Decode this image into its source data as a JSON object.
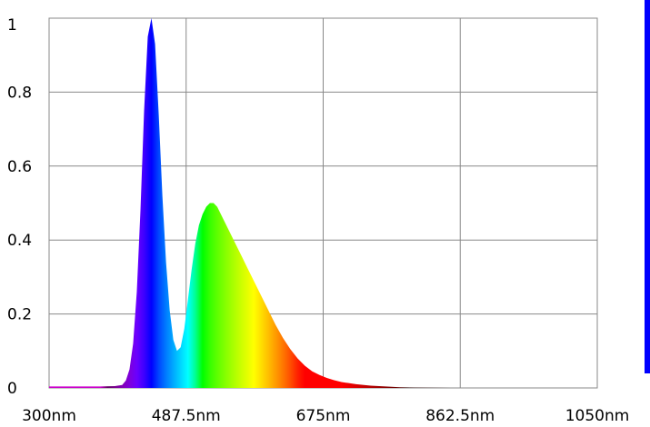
{
  "chart_data": {
    "type": "area",
    "title": "",
    "xlabel": "",
    "ylabel": "",
    "x_unit_suffix": "nm",
    "xlim": [
      300,
      1050
    ],
    "ylim": [
      0,
      1
    ],
    "x_ticks": [
      "300nm",
      "487.5nm",
      "675nm",
      "862.5nm",
      "1050nm"
    ],
    "y_ticks": [
      "0",
      "0.2",
      "0.4",
      "0.6",
      "0.8",
      "1"
    ],
    "grid": true,
    "legend": "none",
    "fill": "wavelength-color spectrum gradient",
    "series": [
      {
        "x": [
          300,
          370,
          390,
          400,
          405,
          410,
          415,
          420,
          425,
          430,
          435,
          440,
          445,
          450,
          455,
          460,
          465,
          470,
          475,
          480,
          485,
          490,
          495,
          500,
          505,
          510,
          515,
          520,
          525,
          530,
          535,
          540,
          545,
          550,
          555,
          560,
          565,
          570,
          575,
          580,
          590,
          600,
          610,
          620,
          630,
          640,
          650,
          660,
          670,
          680,
          690,
          700,
          720,
          740,
          760,
          780,
          800,
          850,
          1050
        ],
        "y": [
          0.004,
          0.004,
          0.005,
          0.008,
          0.02,
          0.05,
          0.12,
          0.26,
          0.48,
          0.75,
          0.95,
          1.0,
          0.93,
          0.74,
          0.52,
          0.34,
          0.21,
          0.13,
          0.1,
          0.11,
          0.16,
          0.24,
          0.32,
          0.39,
          0.44,
          0.47,
          0.49,
          0.5,
          0.5,
          0.49,
          0.47,
          0.45,
          0.43,
          0.41,
          0.39,
          0.37,
          0.35,
          0.33,
          0.31,
          0.29,
          0.25,
          0.21,
          0.17,
          0.135,
          0.105,
          0.08,
          0.06,
          0.045,
          0.035,
          0.027,
          0.021,
          0.016,
          0.01,
          0.006,
          0.004,
          0.002,
          0.001,
          0.0,
          0.0
        ]
      }
    ]
  }
}
